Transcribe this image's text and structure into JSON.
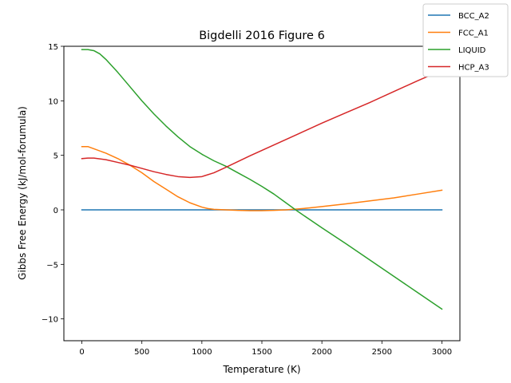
{
  "chart_data": {
    "type": "line",
    "title": "Bigdelli 2016 Figure 6",
    "xlabel": "Temperature (K)",
    "ylabel": "Gibbs Free Energy (kJ/mol-forumula)",
    "xlim": [
      -150,
      3150
    ],
    "ylim": [
      -12,
      15
    ],
    "xticks": [
      0,
      500,
      1000,
      1500,
      2000,
      2500,
      3000
    ],
    "xtick_labels": [
      "0",
      "500",
      "1000",
      "1500",
      "2000",
      "2500",
      "3000"
    ],
    "yticks": [
      -10,
      -5,
      0,
      5,
      10,
      15
    ],
    "ytick_labels": [
      "−10",
      "−5",
      "0",
      "5",
      "10",
      "15"
    ],
    "grid": false,
    "legend_position": "top-right",
    "series": [
      {
        "name": "BCC_A2",
        "color": "#1f77b4",
        "x": [
          0,
          3000
        ],
        "y": [
          0,
          0
        ]
      },
      {
        "name": "FCC_A1",
        "color": "#ff7f0e",
        "x": [
          0,
          50,
          100,
          200,
          300,
          400,
          500,
          600,
          700,
          800,
          900,
          1000,
          1050,
          1100,
          1200,
          1300,
          1400,
          1500,
          1600,
          1700,
          1800,
          1900,
          2000,
          2200,
          2400,
          2600,
          2800,
          3000
        ],
        "y": [
          5.8,
          5.8,
          5.6,
          5.2,
          4.7,
          4.1,
          3.4,
          2.6,
          1.9,
          1.2,
          0.65,
          0.25,
          0.12,
          0.05,
          0.0,
          -0.05,
          -0.07,
          -0.07,
          -0.05,
          0.0,
          0.08,
          0.18,
          0.3,
          0.55,
          0.82,
          1.1,
          1.45,
          1.8
        ]
      },
      {
        "name": "LIQUID",
        "color": "#2ca02c",
        "x": [
          0,
          50,
          100,
          150,
          200,
          300,
          400,
          500,
          600,
          700,
          800,
          900,
          1000,
          1100,
          1200,
          1300,
          1400,
          1500,
          1600,
          1700,
          1800,
          1900,
          2000,
          2200,
          2400,
          2600,
          2800,
          3000
        ],
        "y": [
          14.7,
          14.7,
          14.6,
          14.3,
          13.8,
          12.6,
          11.3,
          10.0,
          8.8,
          7.7,
          6.7,
          5.8,
          5.1,
          4.5,
          4.0,
          3.4,
          2.8,
          2.15,
          1.45,
          0.65,
          -0.15,
          -0.9,
          -1.65,
          -3.1,
          -4.6,
          -6.1,
          -7.6,
          -9.1
        ]
      },
      {
        "name": "HCP_A3",
        "color": "#d62728",
        "x": [
          0,
          50,
          100,
          200,
          300,
          400,
          500,
          600,
          700,
          800,
          900,
          1000,
          1100,
          1200,
          1400,
          1600,
          1800,
          2000,
          2200,
          2400,
          2600,
          2800,
          3000
        ],
        "y": [
          4.7,
          4.75,
          4.75,
          4.6,
          4.35,
          4.1,
          3.8,
          3.5,
          3.25,
          3.05,
          2.97,
          3.05,
          3.4,
          3.9,
          4.95,
          5.95,
          6.95,
          7.95,
          8.9,
          9.85,
          10.85,
          11.85,
          12.8
        ]
      }
    ]
  }
}
